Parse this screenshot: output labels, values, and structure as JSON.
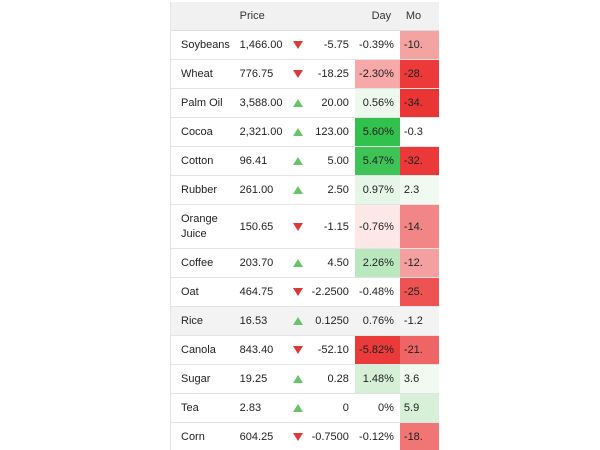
{
  "header": {
    "name": "",
    "price": "Price",
    "day": "Day",
    "month": "Mo"
  },
  "rows": [
    {
      "name": "Soybeans",
      "price": "1,466.00",
      "direction": "down",
      "change": "-5.75",
      "day": "-0.39%",
      "month": "-10.",
      "day_color": "#ffffff",
      "month_color": "#f4a3a3"
    },
    {
      "name": "Wheat",
      "price": "776.75",
      "direction": "down",
      "change": "-18.25",
      "day": "-2.30%",
      "month": "-28.",
      "day_color": "#f7a8a8",
      "month_color": "#ec3a3a"
    },
    {
      "name": "Palm Oil",
      "price": "3,588.00",
      "direction": "up",
      "change": "20.00",
      "day": "0.56%",
      "month": "-34.",
      "day_color": "#eef9ee",
      "month_color": "#ea3535"
    },
    {
      "name": "Cocoa",
      "price": "2,321.00",
      "direction": "up",
      "change": "123.00",
      "day": "5.60%",
      "month": "-0.3",
      "day_color": "#33c14e",
      "month_color": "#ffffff"
    },
    {
      "name": "Cotton",
      "price": "96.41",
      "direction": "up",
      "change": "5.00",
      "day": "5.47%",
      "month": "-32.",
      "day_color": "#3ec357",
      "month_color": "#eb3838"
    },
    {
      "name": "Rubber",
      "price": "261.00",
      "direction": "up",
      "change": "2.50",
      "day": "0.97%",
      "month": "2.3",
      "day_color": "#e6f6e6",
      "month_color": "#f1faf1"
    },
    {
      "name": "Orange Juice",
      "price": "150.65",
      "direction": "down",
      "change": "-1.15",
      "day": "-0.76%",
      "month": "-14.",
      "day_color": "#fde7e7",
      "month_color": "#f28686",
      "tall": true
    },
    {
      "name": "Coffee",
      "price": "203.70",
      "direction": "up",
      "change": "4.50",
      "day": "2.26%",
      "month": "-12.",
      "day_color": "#b9e7be",
      "month_color": "#f4a0a0"
    },
    {
      "name": "Oat",
      "price": "464.75",
      "direction": "down",
      "change": "-2.2500",
      "day": "-0.48%",
      "month": "-25.",
      "day_color": "#ffffff",
      "month_color": "#ee5353"
    },
    {
      "name": "Rice",
      "price": "16.53",
      "direction": "up",
      "change": "0.1250",
      "day": "0.76%",
      "month": "-1.2",
      "day_color": "#f3f3f3",
      "month_color": "#f3f3f3",
      "shaded": true
    },
    {
      "name": "Canola",
      "price": "843.40",
      "direction": "down",
      "change": "-52.10",
      "day": "-5.82%",
      "month": "-21.",
      "day_color": "#ea3a3a",
      "month_color": "#ef6565"
    },
    {
      "name": "Sugar",
      "price": "19.25",
      "direction": "up",
      "change": "0.28",
      "day": "1.48%",
      "month": "3.6",
      "day_color": "#d6f0d8",
      "month_color": "#f0faf0"
    },
    {
      "name": "Tea",
      "price": "2.83",
      "direction": "up",
      "change": "0",
      "day": "0%",
      "month": "5.9",
      "day_color": "#ffffff",
      "month_color": "#d7f1d9"
    },
    {
      "name": "Corn",
      "price": "604.25",
      "direction": "down",
      "change": "-0.7500",
      "day": "-0.12%",
      "month": "-18.",
      "day_color": "#ffffff",
      "month_color": "#f07575"
    }
  ],
  "colors": {
    "down_arrow": "#d93a3a",
    "up_arrow": "#6ac26a",
    "header_bg": "#f1f1f1"
  }
}
